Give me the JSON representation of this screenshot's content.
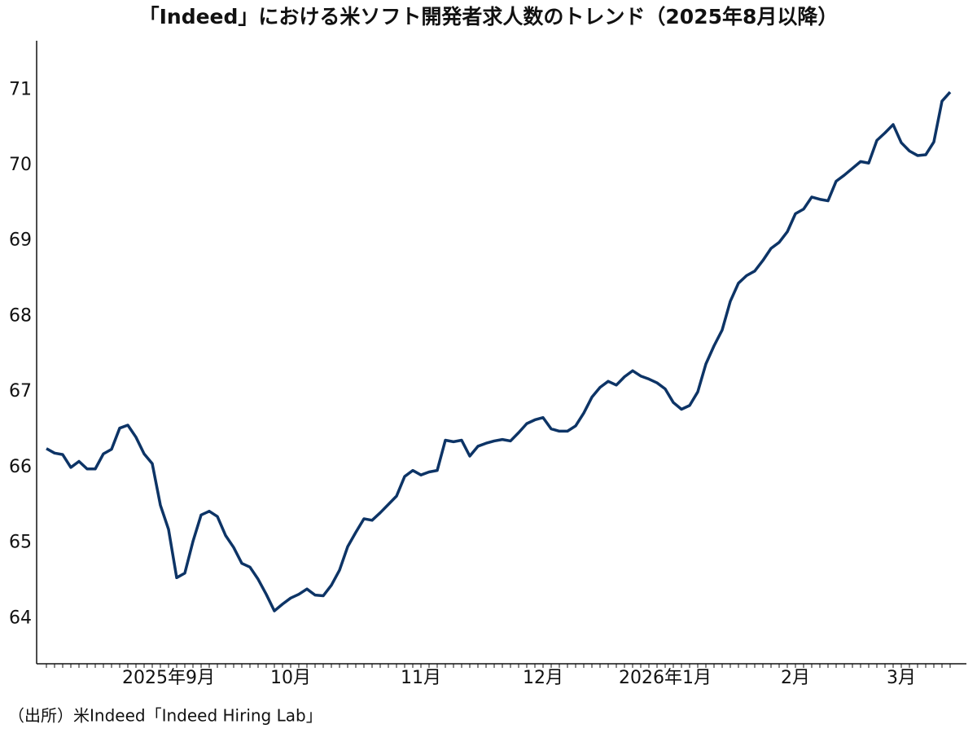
{
  "chart_data": {
    "type": "line",
    "title": "「Indeed」における米ソフト開発者求人数のトレンド（2025年8月以降）",
    "source": "（出所）米Indeed「Indeed Hiring Lab」",
    "color": "#0d3466",
    "categories": [
      null,
      null,
      null,
      null,
      null,
      null,
      null,
      null,
      null,
      null,
      null,
      null,
      null,
      null,
      null,
      "2025年9月",
      null,
      null,
      null,
      null,
      null,
      null,
      null,
      null,
      null,
      null,
      null,
      null,
      null,
      null,
      "10月",
      null,
      null,
      null,
      null,
      null,
      null,
      null,
      null,
      null,
      null,
      null,
      null,
      null,
      null,
      null,
      "11月",
      null,
      null,
      null,
      null,
      null,
      null,
      null,
      null,
      null,
      null,
      null,
      null,
      null,
      null,
      "12月",
      null,
      null,
      null,
      null,
      null,
      null,
      null,
      null,
      null,
      null,
      null,
      null,
      null,
      null,
      "2026年1月",
      null,
      null,
      null,
      null,
      null,
      null,
      null,
      null,
      null,
      null,
      null,
      null,
      null,
      null,
      null,
      "2月",
      null,
      null,
      null,
      null,
      null,
      null,
      null,
      null,
      null,
      null,
      null,
      null,
      "3月",
      null,
      null,
      null,
      null,
      null,
      null
    ],
    "values": [
      66.25,
      66.19,
      66.17,
      66.0,
      66.08,
      65.98,
      65.98,
      66.18,
      66.24,
      66.52,
      66.56,
      66.4,
      66.18,
      66.05,
      65.5,
      65.18,
      64.54,
      64.6,
      65.02,
      65.37,
      65.42,
      65.35,
      65.1,
      64.94,
      64.73,
      64.68,
      64.52,
      64.32,
      64.1,
      64.19,
      64.27,
      64.32,
      64.39,
      64.31,
      64.3,
      64.44,
      64.64,
      64.95,
      65.14,
      65.32,
      65.3,
      65.4,
      65.51,
      65.62,
      65.88,
      65.96,
      65.9,
      65.94,
      65.96,
      66.36,
      66.34,
      66.36,
      66.15,
      66.28,
      66.32,
      66.35,
      66.37,
      66.35,
      66.46,
      66.58,
      66.63,
      66.66,
      66.51,
      66.48,
      66.48,
      66.55,
      66.72,
      66.93,
      67.06,
      67.14,
      67.09,
      67.2,
      67.28,
      67.21,
      67.17,
      67.12,
      67.04,
      66.86,
      66.77,
      66.82,
      67.0,
      67.37,
      67.61,
      67.82,
      68.2,
      68.44,
      68.54,
      68.6,
      68.74,
      68.9,
      68.98,
      69.12,
      69.36,
      69.42,
      69.58,
      69.55,
      69.53,
      69.79,
      69.87,
      69.96,
      70.05,
      70.03,
      70.33,
      70.43,
      70.54,
      70.3,
      70.19,
      70.13,
      70.14,
      70.31,
      70.85,
      70.97
    ],
    "ylim": [
      63.4,
      71.65
    ],
    "yticks": [
      64,
      65,
      66,
      67,
      68,
      69,
      70,
      71
    ],
    "grid": false
  }
}
